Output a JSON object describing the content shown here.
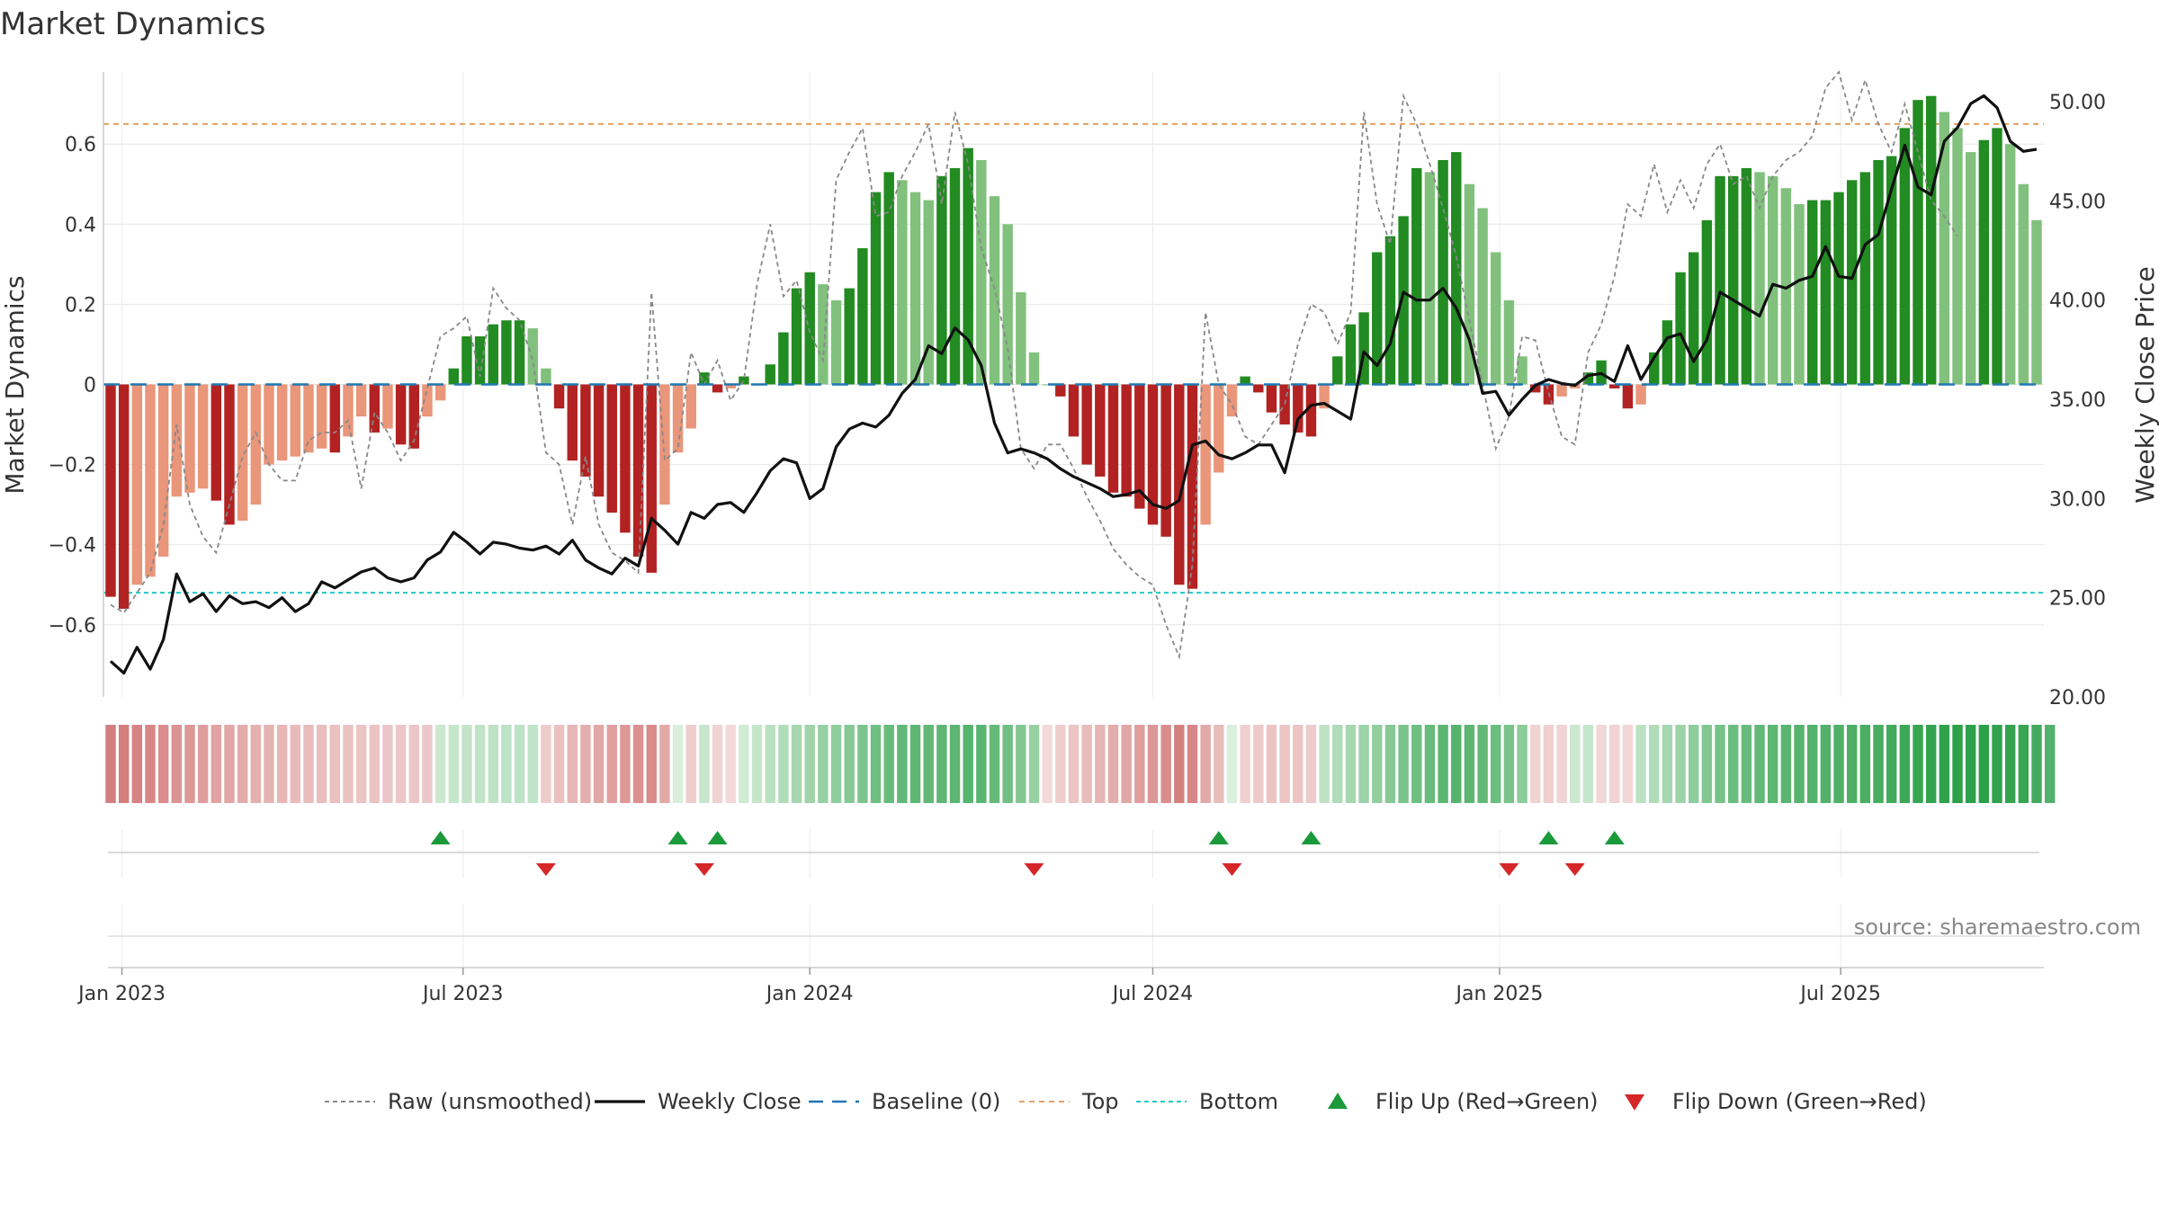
{
  "chart_data": {
    "type": "bar",
    "title": "Market Dynamics",
    "ylabel_left": "Market Dynamics",
    "ylabel_right": "Weekly Close Price",
    "source": "source: sharemaestro.com",
    "x_start": "2022-12-26",
    "x_step_days": 7,
    "x_ticks": [
      {
        "date": "2023-01-01",
        "label": "Jan 2023"
      },
      {
        "date": "2023-07-01",
        "label": "Jul 2023"
      },
      {
        "date": "2024-01-01",
        "label": "Jan 2024"
      },
      {
        "date": "2024-07-01",
        "label": "Jul 2024"
      },
      {
        "date": "2025-01-01",
        "label": "Jan 2025"
      },
      {
        "date": "2025-07-01",
        "label": "Jul 2025"
      }
    ],
    "ylim_left": [
      -0.78,
      0.78
    ],
    "y_ticks_left": [
      {
        "value": 0.6,
        "label": "0.6"
      },
      {
        "value": 0.4,
        "label": "0.4"
      },
      {
        "value": 0.2,
        "label": "0.2"
      },
      {
        "value": 0,
        "label": "0"
      },
      {
        "value": -0.2,
        "label": "−0.2"
      },
      {
        "value": -0.4,
        "label": "−0.4"
      },
      {
        "value": -0.6,
        "label": "−0.6"
      }
    ],
    "ylim_right": [
      20,
      51.5
    ],
    "y_ticks_right": [
      {
        "value": 50,
        "label": "50.00"
      },
      {
        "value": 45,
        "label": "45.00"
      },
      {
        "value": 40,
        "label": "40.00"
      },
      {
        "value": 35,
        "label": "35.00"
      },
      {
        "value": 30,
        "label": "30.00"
      },
      {
        "value": 25,
        "label": "25.00"
      },
      {
        "value": 20,
        "label": "20.00"
      }
    ],
    "top_level": 0.65,
    "bottom_level": -0.52,
    "values": [
      -0.53,
      -0.56,
      -0.5,
      -0.48,
      -0.43,
      -0.28,
      -0.27,
      -0.26,
      -0.29,
      -0.35,
      -0.34,
      -0.3,
      -0.2,
      -0.19,
      -0.18,
      -0.17,
      -0.16,
      -0.17,
      -0.13,
      -0.08,
      -0.12,
      -0.11,
      -0.15,
      -0.16,
      -0.08,
      -0.04,
      0.04,
      0.12,
      0.12,
      0.15,
      0.16,
      0.16,
      0.14,
      0.04,
      -0.06,
      -0.19,
      -0.23,
      -0.28,
      -0.32,
      -0.37,
      -0.43,
      -0.47,
      -0.3,
      -0.17,
      -0.11,
      0.03,
      -0.02,
      -0.01,
      0.02,
      0.0,
      0.05,
      0.13,
      0.24,
      0.28,
      0.25,
      0.21,
      0.24,
      0.34,
      0.48,
      0.53,
      0.51,
      0.48,
      0.46,
      0.52,
      0.54,
      0.59,
      0.56,
      0.47,
      0.4,
      0.23,
      0.08,
      0.0,
      -0.03,
      -0.13,
      -0.2,
      -0.23,
      -0.27,
      -0.28,
      -0.31,
      -0.35,
      -0.38,
      -0.5,
      -0.51,
      -0.35,
      -0.22,
      -0.08,
      0.02,
      -0.02,
      -0.07,
      -0.1,
      -0.12,
      -0.13,
      -0.06,
      0.07,
      0.15,
      0.18,
      0.33,
      0.37,
      0.42,
      0.54,
      0.53,
      0.56,
      0.58,
      0.5,
      0.44,
      0.33,
      0.21,
      0.07,
      -0.02,
      -0.05,
      -0.03,
      -0.01,
      0.03,
      0.06,
      -0.01,
      -0.06,
      -0.05,
      0.08,
      0.16,
      0.28,
      0.33,
      0.41,
      0.52,
      0.52,
      0.54,
      0.53,
      0.52,
      0.49,
      0.45,
      0.46,
      0.46,
      0.48,
      0.51,
      0.53,
      0.56,
      0.57,
      0.64,
      0.71,
      0.72,
      0.68,
      0.64,
      0.58,
      0.61,
      0.64,
      0.6,
      0.5,
      0.41
    ],
    "raw": [
      -0.55,
      -0.57,
      -0.52,
      -0.47,
      -0.35,
      -0.1,
      -0.3,
      -0.38,
      -0.42,
      -0.3,
      -0.18,
      -0.12,
      -0.2,
      -0.24,
      -0.24,
      -0.14,
      -0.12,
      -0.12,
      -0.09,
      -0.26,
      -0.07,
      -0.12,
      -0.19,
      -0.14,
      -0.01,
      0.12,
      0.14,
      0.17,
      0.02,
      0.24,
      0.19,
      0.16,
      0.06,
      -0.17,
      -0.2,
      -0.35,
      -0.18,
      -0.35,
      -0.42,
      -0.44,
      -0.47,
      0.23,
      -0.19,
      -0.16,
      0.08,
      0.0,
      0.06,
      -0.04,
      0.01,
      0.25,
      0.4,
      0.22,
      0.26,
      0.13,
      0.06,
      0.51,
      0.58,
      0.64,
      0.42,
      0.43,
      0.52,
      0.58,
      0.65,
      0.45,
      0.68,
      0.55,
      0.34,
      0.24,
      0.09,
      -0.16,
      -0.21,
      -0.15,
      -0.15,
      -0.21,
      -0.28,
      -0.34,
      -0.41,
      -0.45,
      -0.48,
      -0.5,
      -0.6,
      -0.68,
      -0.45,
      0.18,
      0.0,
      -0.05,
      -0.13,
      -0.15,
      -0.1,
      -0.05,
      0.1,
      0.2,
      0.18,
      0.1,
      0.18,
      0.68,
      0.45,
      0.35,
      0.72,
      0.65,
      0.55,
      0.44,
      0.32,
      0.16,
      0.0,
      -0.16,
      -0.08,
      0.12,
      0.11,
      -0.02,
      -0.13,
      -0.15,
      0.08,
      0.15,
      0.27,
      0.45,
      0.42,
      0.55,
      0.43,
      0.51,
      0.44,
      0.55,
      0.6,
      0.5,
      0.52,
      0.44,
      0.52,
      0.56,
      0.58,
      0.62,
      0.74,
      0.78,
      0.66,
      0.76,
      0.65,
      0.58,
      0.7,
      0.58,
      0.46,
      0.42,
      0.37
    ],
    "close": [
      21.8,
      21.2,
      22.5,
      21.4,
      22.9,
      26.2,
      24.8,
      25.2,
      24.3,
      25.1,
      24.7,
      24.8,
      24.5,
      25.0,
      24.3,
      24.7,
      25.8,
      25.5,
      25.9,
      26.3,
      26.5,
      26.0,
      25.8,
      26.0,
      26.9,
      27.3,
      28.3,
      27.8,
      27.2,
      27.8,
      27.7,
      27.5,
      27.4,
      27.6,
      27.2,
      27.9,
      26.9,
      26.5,
      26.2,
      27.0,
      26.6,
      29.0,
      28.4,
      27.7,
      29.3,
      29.0,
      29.7,
      29.8,
      29.3,
      30.3,
      31.4,
      32.0,
      31.8,
      30.0,
      30.5,
      32.6,
      33.5,
      33.8,
      33.6,
      34.2,
      35.3,
      36.0,
      37.7,
      37.3,
      38.6,
      38.0,
      36.7,
      33.8,
      32.3,
      32.5,
      32.3,
      32.0,
      31.5,
      31.1,
      30.8,
      30.5,
      30.1,
      30.2,
      30.4,
      29.7,
      29.5,
      29.9,
      32.7,
      32.9,
      32.2,
      32.0,
      32.3,
      32.7,
      32.7,
      31.3,
      34.0,
      34.7,
      34.8,
      34.4,
      34.0,
      37.4,
      36.7,
      37.8,
      40.4,
      40.0,
      40.0,
      40.6,
      39.6,
      38.0,
      35.3,
      35.4,
      34.2,
      35.0,
      35.7,
      36.0,
      35.8,
      35.7,
      36.2,
      36.3,
      35.9,
      37.7,
      36.0,
      37.1,
      38.1,
      38.3,
      36.9,
      38.0,
      40.4,
      40.0,
      39.6,
      39.2,
      40.8,
      40.6,
      41.0,
      41.2,
      42.7,
      41.2,
      41.1,
      42.8,
      43.3,
      45.6,
      47.8,
      45.7,
      45.3,
      48.0,
      48.7,
      49.9,
      50.3,
      49.7,
      48.0,
      47.5,
      47.6
    ],
    "heat_values": [
      -0.53,
      -0.53,
      -0.5,
      -0.48,
      -0.45,
      -0.42,
      -0.39,
      -0.36,
      -0.34,
      -0.31,
      -0.29,
      -0.27,
      -0.25,
      -0.23,
      -0.21,
      -0.2,
      -0.19,
      -0.18,
      -0.17,
      -0.16,
      -0.16,
      -0.15,
      -0.15,
      -0.15,
      -0.14,
      0.1,
      0.12,
      0.13,
      0.14,
      0.15,
      0.15,
      0.15,
      0.14,
      -0.12,
      -0.18,
      -0.23,
      -0.27,
      -0.31,
      -0.35,
      -0.39,
      -0.43,
      -0.46,
      -0.3,
      0.05,
      -0.11,
      0.12,
      -0.08,
      -0.05,
      0.08,
      0.12,
      0.16,
      0.2,
      0.24,
      0.27,
      0.3,
      0.33,
      0.36,
      0.4,
      0.44,
      0.48,
      0.5,
      0.51,
      0.5,
      0.51,
      0.52,
      0.54,
      0.53,
      0.49,
      0.44,
      0.38,
      0.3,
      -0.05,
      -0.11,
      -0.16,
      -0.2,
      -0.24,
      -0.28,
      -0.32,
      -0.36,
      -0.4,
      -0.45,
      -0.52,
      -0.48,
      -0.3,
      -0.2,
      0.04,
      -0.1,
      -0.13,
      -0.16,
      -0.16,
      -0.16,
      -0.12,
      0.15,
      0.2,
      0.24,
      0.28,
      0.32,
      0.36,
      0.41,
      0.45,
      0.48,
      0.52,
      0.54,
      0.52,
      0.5,
      0.46,
      0.41,
      0.34,
      -0.08,
      -0.1,
      -0.08,
      0.1,
      0.12,
      -0.06,
      -0.08,
      -0.07,
      0.16,
      0.2,
      0.24,
      0.28,
      0.33,
      0.38,
      0.42,
      0.46,
      0.48,
      0.5,
      0.52,
      0.53,
      0.54,
      0.55,
      0.56,
      0.57,
      0.58,
      0.59,
      0.6,
      0.62,
      0.64,
      0.66,
      0.68,
      0.69,
      0.7,
      0.7,
      0.7,
      0.69,
      0.68,
      0.66,
      0.62,
      0.56
    ],
    "flip_up_dates": [
      "2023-06-19",
      "2023-10-23",
      "2023-11-13",
      "2024-08-05",
      "2024-09-23",
      "2025-01-27",
      "2025-03-03"
    ],
    "flip_down_dates": [
      "2023-08-14",
      "2023-11-06",
      "2024-04-29",
      "2024-08-12",
      "2025-01-06",
      "2025-02-10"
    ],
    "legend": [
      {
        "key": "raw",
        "label": "Raw (unsmoothed)"
      },
      {
        "key": "close",
        "label": "Weekly Close"
      },
      {
        "key": "baseline",
        "label": "Baseline (0)"
      },
      {
        "key": "top",
        "label": "Top"
      },
      {
        "key": "bottom",
        "label": "Bottom"
      },
      {
        "key": "flipup",
        "label": "Flip Up (Red→Green)"
      },
      {
        "key": "flipdown",
        "label": "Flip Down (Green→Red)"
      }
    ],
    "colors": {
      "green_strong": "#228B22",
      "green_light": "#81C17D",
      "red_strong": "#B22222",
      "red_light": "#E9967A",
      "raw_line": "#888888",
      "close_line": "#111111",
      "baseline": "#1f77b4",
      "top": "#E8A060",
      "bottom": "#20C8C8",
      "flip_up": "#1a9a3a",
      "flip_down": "#d62728"
    },
    "grid": true,
    "legend_position": "bottom-center"
  }
}
